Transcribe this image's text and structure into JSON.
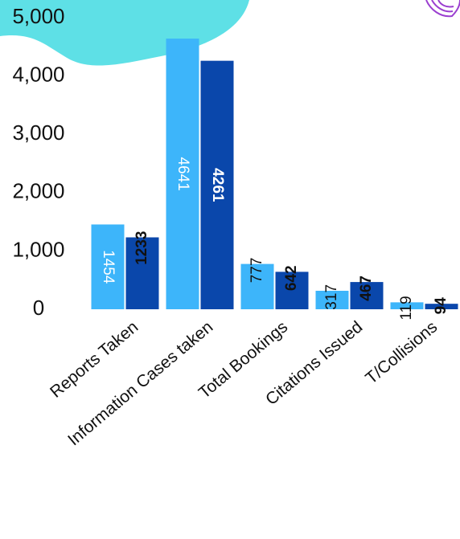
{
  "chart_data": {
    "type": "bar",
    "categories": [
      "Reports Taken",
      "Information Cases taken",
      "Total Bookings",
      "Citations Issued",
      "T/Collisions"
    ],
    "series": [
      {
        "color": "#3db5fa",
        "values": [
          1454,
          4641,
          777,
          317,
          119
        ]
      },
      {
        "color": "#0a47ab",
        "values": [
          1233,
          4261,
          642,
          467,
          94
        ]
      }
    ],
    "ylim": [
      0,
      5000
    ],
    "yticks": [
      0,
      {
        "value": 1000,
        "label": "1,000"
      },
      {
        "value": 2000,
        "label": "2,000"
      },
      {
        "value": 3000,
        "label": "3,000"
      },
      {
        "value": 4000,
        "label": "4,000"
      },
      {
        "value": 5000,
        "label": "5,000"
      }
    ],
    "grid": false
  }
}
